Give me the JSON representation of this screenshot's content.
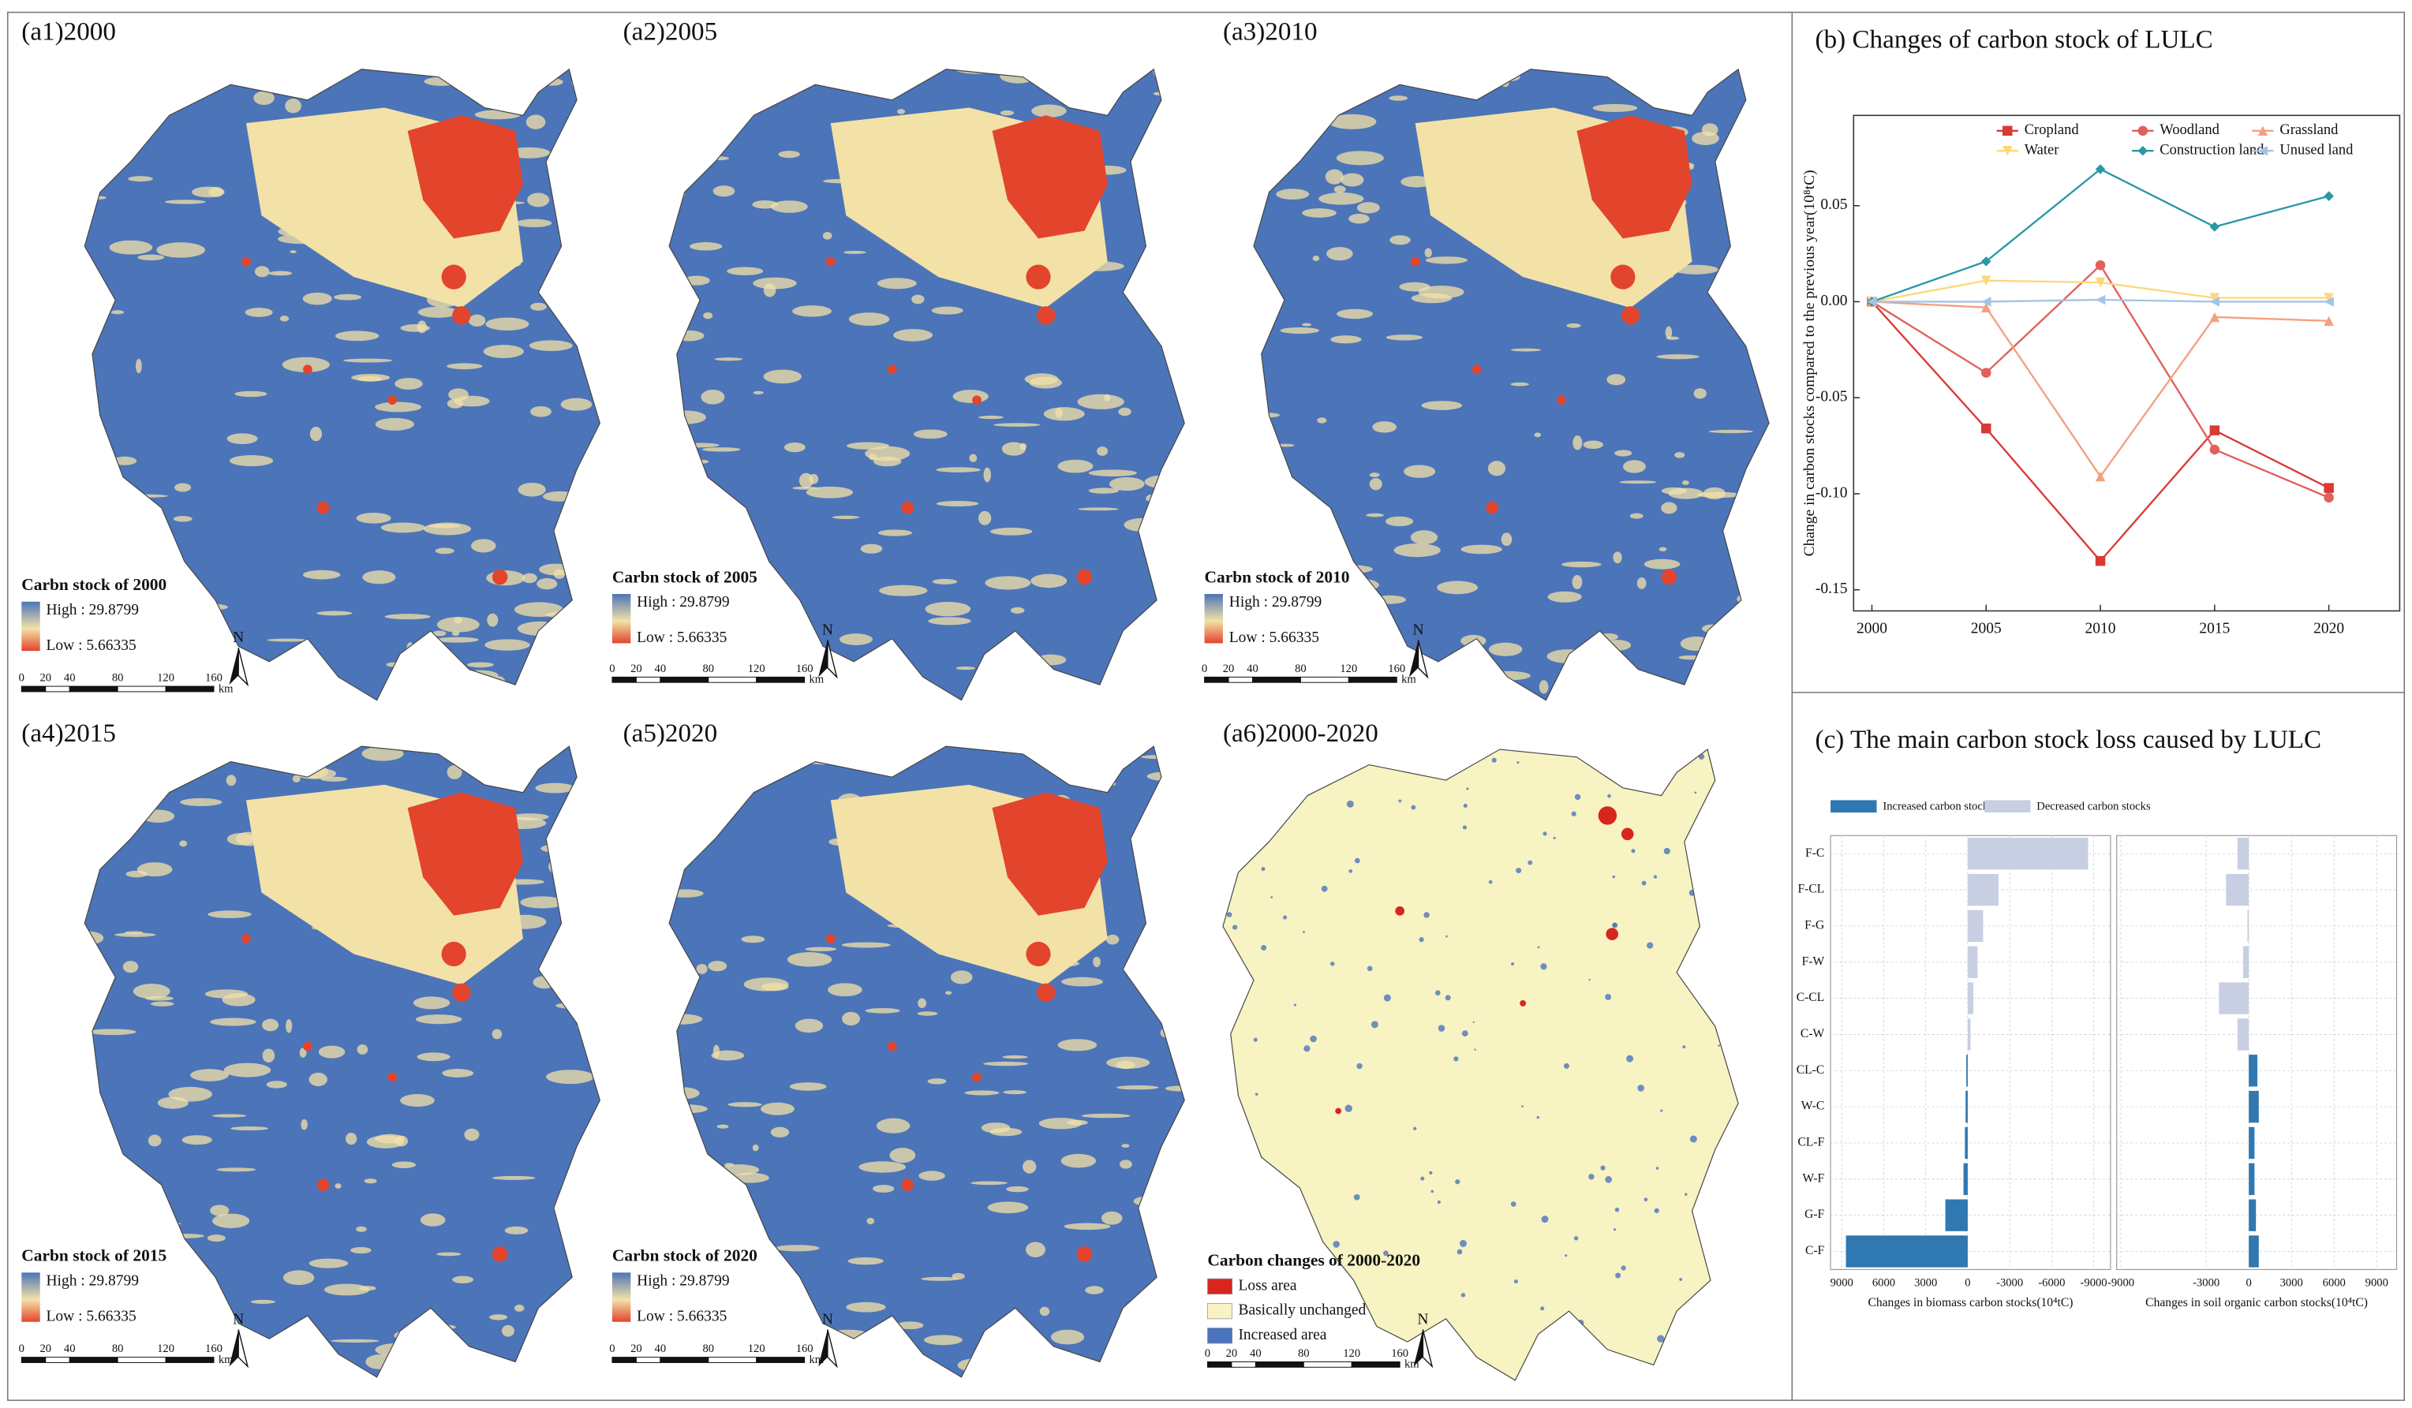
{
  "maps": [
    {
      "type": "stock",
      "label": "(a1)2000",
      "legend_title": "Carbn stock of 2000",
      "high": "High : 29.8799",
      "low": "Low : 5.66335",
      "palette": [
        "#4c74b8",
        "#f3e2a8",
        "#e3442c"
      ],
      "scale_ticks": [
        0,
        20,
        40,
        80,
        120,
        160
      ],
      "scale_unit": "km",
      "north": "N"
    },
    {
      "type": "stock",
      "label": "(a2)2005",
      "legend_title": "Carbn stock of 2005",
      "high": "High : 29.8799",
      "low": "Low : 5.66335",
      "palette": [
        "#4c74b8",
        "#f3e2a8",
        "#e3442c"
      ],
      "scale_ticks": [
        0,
        20,
        40,
        80,
        120,
        160
      ],
      "scale_unit": "km",
      "north": "N"
    },
    {
      "type": "stock",
      "label": "(a3)2010",
      "legend_title": "Carbn stock of 2010",
      "high": "High : 29.8799",
      "low": "Low : 5.66335",
      "palette": [
        "#4c74b8",
        "#f3e2a8",
        "#e3442c"
      ],
      "scale_ticks": [
        0,
        20,
        40,
        80,
        120,
        160
      ],
      "scale_unit": "km",
      "north": "N"
    },
    {
      "type": "stock",
      "label": "(a4)2015",
      "legend_title": "Carbn stock of 2015",
      "high": "High : 29.8799",
      "low": "Low : 5.66335",
      "palette": [
        "#4c74b8",
        "#f3e2a8",
        "#e3442c"
      ],
      "scale_ticks": [
        0,
        20,
        40,
        80,
        120,
        160
      ],
      "scale_unit": "km",
      "north": "N"
    },
    {
      "type": "stock",
      "label": "(a5)2020",
      "legend_title": "Carbn stock of 2020",
      "high": "High : 29.8799",
      "low": "Low : 5.66335",
      "palette": [
        "#4c74b8",
        "#f3e2a8",
        "#e3442c"
      ],
      "scale_ticks": [
        0,
        20,
        40,
        80,
        120,
        160
      ],
      "scale_unit": "km",
      "north": "N"
    },
    {
      "type": "change",
      "label": "(a6)2000-2020",
      "legend_title": "Carbon changes of 2000-2020",
      "legend_items": [
        {
          "name": "Loss area",
          "color": "#d7261e"
        },
        {
          "name": "Basically unchanged",
          "color": "#f7f3c2"
        },
        {
          "name": "Increased area",
          "color": "#4a74bd"
        }
      ],
      "scale_ticks": [
        0,
        20,
        40,
        80,
        120,
        160
      ],
      "scale_unit": "km",
      "north": "N"
    }
  ],
  "chart_data": [
    {
      "type": "line",
      "title": "(b) Changes of carbon stock of LULC",
      "y_label": "Change in carbon stocks compared to the previous year(10⁸tC)",
      "x": [
        2000,
        2005,
        2010,
        2015,
        2020
      ],
      "xlim": [
        1999.2,
        2023.1
      ],
      "xticks": [
        2000,
        2005,
        2010,
        2015,
        2020
      ],
      "ylim": [
        -0.161,
        0.097
      ],
      "yticks": [
        -0.15,
        {
          "value": -0.1,
          "label": "-0.10"
        },
        -0.05,
        {
          "value": 0,
          "label": "0.00"
        },
        0.05
      ],
      "series": [
        {
          "name": "Cropland",
          "color": "#d93a36",
          "marker": "square",
          "values": [
            0,
            -0.066,
            -0.135,
            -0.067,
            -0.097
          ]
        },
        {
          "name": "Woodland",
          "color": "#e0605c",
          "marker": "circle",
          "values": [
            0,
            -0.037,
            0.019,
            -0.077,
            -0.102
          ]
        },
        {
          "name": "Grassland",
          "color": "#f4a07e",
          "marker": "triangle-up",
          "values": [
            0,
            -0.003,
            -0.091,
            -0.008,
            -0.01
          ]
        },
        {
          "name": "Water",
          "color": "#fbd77e",
          "marker": "triangle-down",
          "values": [
            0,
            0.011,
            0.01,
            0.002,
            0.002
          ]
        },
        {
          "name": "Construction land",
          "color": "#2a97a6",
          "marker": "diamond",
          "values": [
            0,
            0.021,
            0.069,
            0.039,
            0.055
          ]
        },
        {
          "name": "Unused land",
          "color": "#a3c4e6",
          "marker": "triangle-left",
          "values": [
            0,
            0.0,
            0.001,
            0.0,
            0.0
          ]
        }
      ]
    },
    {
      "type": "hbar-panels",
      "title": "(c) The main carbon stock loss caused by LULC",
      "categories": [
        "F-C",
        "F-CL",
        "F-G",
        "F-W",
        "C-CL",
        "C-W",
        "CL-C",
        "W-C",
        "CL-F",
        "W-F",
        "G-F",
        "C-F"
      ],
      "series": [
        {
          "name": "Increased carbon stocks",
          "color": "#2f78b1"
        },
        {
          "name": "Decreased carbon stocks",
          "color": "#c8cfe2"
        }
      ],
      "grid": true,
      "panels": [
        {
          "xlabel": "Changes in biomass carbon stocks(10⁴tC)",
          "xlim": [
            9800,
            -10200
          ],
          "xticks": [
            9000,
            6000,
            3000,
            0,
            -3000,
            -6000,
            -9000
          ],
          "values": [
            -8600,
            -2200,
            -1100,
            -700,
            -400,
            -200,
            100,
            150,
            200,
            300,
            1600,
            8700
          ]
        },
        {
          "xlabel": "Changes in soil organic carbon stocks(10⁴tC)",
          "xlim": [
            -9300,
            10400
          ],
          "xticks": [
            -9000,
            -3000,
            0,
            3000,
            6000,
            9000
          ],
          "values": [
            -800,
            -1600,
            -100,
            -400,
            -2100,
            -800,
            600,
            700,
            400,
            400,
            500,
            700
          ]
        }
      ]
    }
  ]
}
